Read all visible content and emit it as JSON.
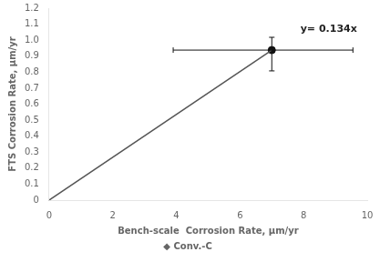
{
  "chart_data": {
    "type": "scatter",
    "xlabel": "Bench-scale  Corrosion Rate, μm/yr",
    "ylabel": "FTS Corrosion Rate, μm/yr",
    "xlim": [
      0,
      10
    ],
    "ylim": [
      0,
      1.2
    ],
    "xticks": [
      0,
      2,
      4,
      6,
      8,
      10
    ],
    "yticks": [
      0,
      0.1,
      0.2,
      0.3,
      0.4,
      0.5,
      0.6,
      0.7,
      0.8,
      0.9,
      {
        "value": 1,
        "label": "1.0"
      },
      1.1,
      1.2
    ],
    "grid": false,
    "legend": "bottom",
    "series": [
      {
        "type": "line",
        "color": "#555555",
        "line_style": "solid",
        "x": [
          0,
          7.0
        ],
        "values": [
          0,
          0.938
        ]
      },
      {
        "name": "◆ Conv.-C",
        "type": "scatter",
        "color": "#111111",
        "marker": "circle",
        "x": [
          7.0
        ],
        "values": [
          0.938
        ],
        "xerr_minus": [
          3.1
        ],
        "xerr_plus": [
          2.55
        ],
        "yerr_minus": [
          0.13
        ],
        "yerr_plus": [
          0.08
        ]
      }
    ],
    "annotations": [
      {
        "text": "y= 0.134x",
        "x": 7.9,
        "y": 1.07
      }
    ]
  }
}
